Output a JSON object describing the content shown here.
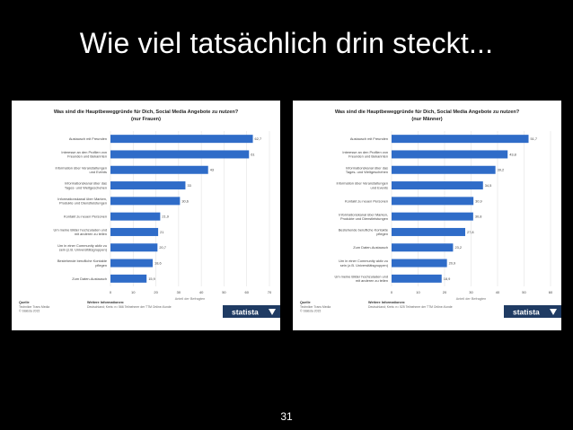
{
  "slide": {
    "title": "Wie viel tatsächlich drin steckt...",
    "page_number": "31"
  },
  "colors": {
    "bar": "#2f6cc8",
    "brand": "#1f3b63",
    "grid": "#e3e3e3",
    "text": "#444444"
  },
  "chart_data": [
    {
      "type": "bar",
      "orientation": "horizontal",
      "title": "Was sind die Hauptbeweggründe für Dich, Social Media Angebote zu nutzen?",
      "subtitle": "(nur Frauen)",
      "categories": [
        "Austausch mit Freunden",
        "Interesse an den Profilen von Freunden und Bekannten",
        "Information über Veranstaltungen und Events",
        "Informationskanal über das Tages- und Weltgeschehen",
        "Informationskanal über Marken, Produkte und Dienstleistungen",
        "Kontakt zu neuen Personen",
        "Um meine Bilder hochzuladen und mit anderen zu teilen",
        "Um in einer Community aktiv zu sein (z.B. Universitätsgruppen)",
        "Bestehende berufliche Kontakte pflegen",
        "Zum Daten-Austausch"
      ],
      "value_labels": [
        "62,7",
        "61",
        "43",
        "33",
        "30,6",
        "21,9",
        "21",
        "20,7",
        "18,6",
        "15,9"
      ],
      "values": [
        62.7,
        61,
        43,
        33,
        30.6,
        21.9,
        21,
        20.7,
        18.6,
        15.9
      ],
      "xlim": [
        0,
        70
      ],
      "xticks": [
        "0",
        "10",
        "20",
        "30",
        "40",
        "50",
        "60",
        "70"
      ],
      "xlabel": "Anteil der Befragten",
      "grid": true,
      "footer": {
        "source_heading": "Quelle",
        "source_lines": [
          "Techniker Trans Media",
          "© Statista 2015"
        ],
        "info_heading": "Weitere Informationen:",
        "info_lines": [
          "Deutschland; Kreis: n= 566 Teilnehmer der TTM Online-Kunde"
        ],
        "brand": "statista"
      }
    },
    {
      "type": "bar",
      "orientation": "horizontal",
      "title": "Was sind die Hauptbeweggründe für Dich, Social Media Angebote zu nutzen?",
      "subtitle": "(nur Männer)",
      "categories": [
        "Austausch mit Freunden",
        "Interesse an den Profilen von Freunden und Bekannten",
        "Informationskanal über das Tages- und Weltgeschehen",
        "Information über Veranstaltungen und Events",
        "Kontakt zu neuen Personen",
        "Informationskanal über Marken, Produkte und Dienstleistungen",
        "Bestehende berufliche Kontakte pflegen",
        "Zum Daten-Austausch",
        "Um in einer Community aktiv zu sein (z.B. Universitätsgruppen)",
        "Um meine Bilder hochzuladen und mit anderen zu teilen"
      ],
      "value_labels": [
        "51,7",
        "43,8",
        "39,2",
        "34,5",
        "30,9",
        "30,8",
        "27,8",
        "23,2",
        "20,9",
        "18,9"
      ],
      "values": [
        51.7,
        43.8,
        39.2,
        34.5,
        30.9,
        30.8,
        27.8,
        23.2,
        20.9,
        18.9
      ],
      "xlim": [
        0,
        60
      ],
      "xticks": [
        "0",
        "10",
        "20",
        "30",
        "40",
        "50",
        "60"
      ],
      "xlabel": "Anteil der Befragten",
      "grid": true,
      "footer": {
        "source_heading": "Quelle",
        "source_lines": [
          "Techniker Trans Media",
          "© Statista 2015"
        ],
        "info_heading": "Weitere Informationen:",
        "info_lines": [
          "Deutschland; Kreis: n= 525 Teilnehmer der TTM Online-Kunde"
        ],
        "brand": "statista"
      }
    }
  ]
}
